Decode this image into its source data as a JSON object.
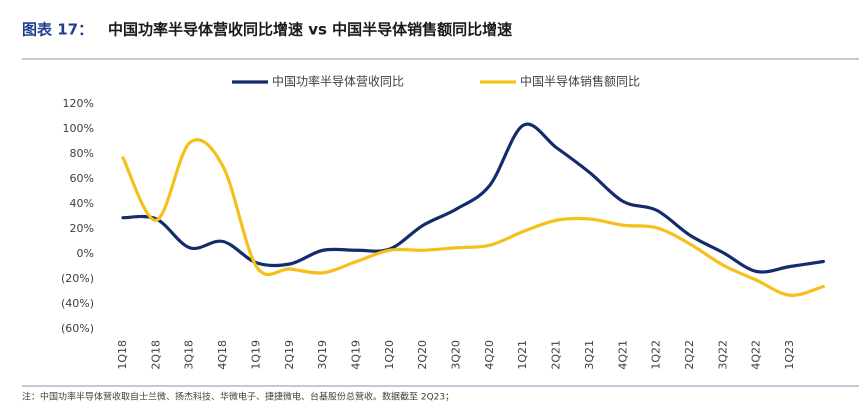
{
  "chart_data": {
    "type": "line",
    "figure_label": "图表 17：",
    "title": "中国功率半导体营收同比增速 vs 中国半导体销售额同比增速",
    "categories": [
      "1Q18",
      "2Q18",
      "3Q18",
      "4Q18",
      "1Q19",
      "2Q19",
      "3Q19",
      "4Q19",
      "1Q20",
      "2Q20",
      "3Q20",
      "4Q20",
      "1Q21",
      "2Q21",
      "3Q21",
      "4Q21",
      "1Q22",
      "2Q22",
      "3Q22",
      "4Q22",
      "1Q23",
      null
    ],
    "series": [
      {
        "name": "中国功率半导体营收同比",
        "color": "#142c6b",
        "values": [
          29,
          28,
          5,
          10,
          -7,
          -8,
          3,
          3,
          4,
          23,
          36,
          55,
          103,
          85,
          65,
          42,
          35,
          15,
          1,
          -14,
          -10,
          -6
        ]
      },
      {
        "name": "中国半导体销售额同比",
        "color": "#f5c01a",
        "values": [
          77,
          27,
          89,
          70,
          -10,
          -12,
          -15,
          -6,
          3,
          3,
          5,
          7,
          18,
          27,
          28,
          23,
          21,
          8,
          -9,
          -21,
          -33,
          -26
        ]
      }
    ],
    "ylim": [
      -60,
      120
    ],
    "yticks": [
      {
        "value": -60,
        "label": "(60%)"
      },
      {
        "value": -40,
        "label": "(40%)"
      },
      {
        "value": -20,
        "label": "(20%)"
      },
      {
        "value": 0,
        "label": "0%"
      },
      {
        "value": 20,
        "label": "20%"
      },
      {
        "value": 40,
        "label": "40%"
      },
      {
        "value": 60,
        "label": "60%"
      },
      {
        "value": 80,
        "label": "80%"
      },
      {
        "value": 100,
        "label": "100%"
      },
      {
        "value": 120,
        "label": "120%"
      }
    ],
    "legend": "top",
    "note": "注：中国功率半导体营收取自士兰微、扬杰科技、华微电子、捷捷微电、台基股份总营收。数据截至 2Q23；"
  }
}
